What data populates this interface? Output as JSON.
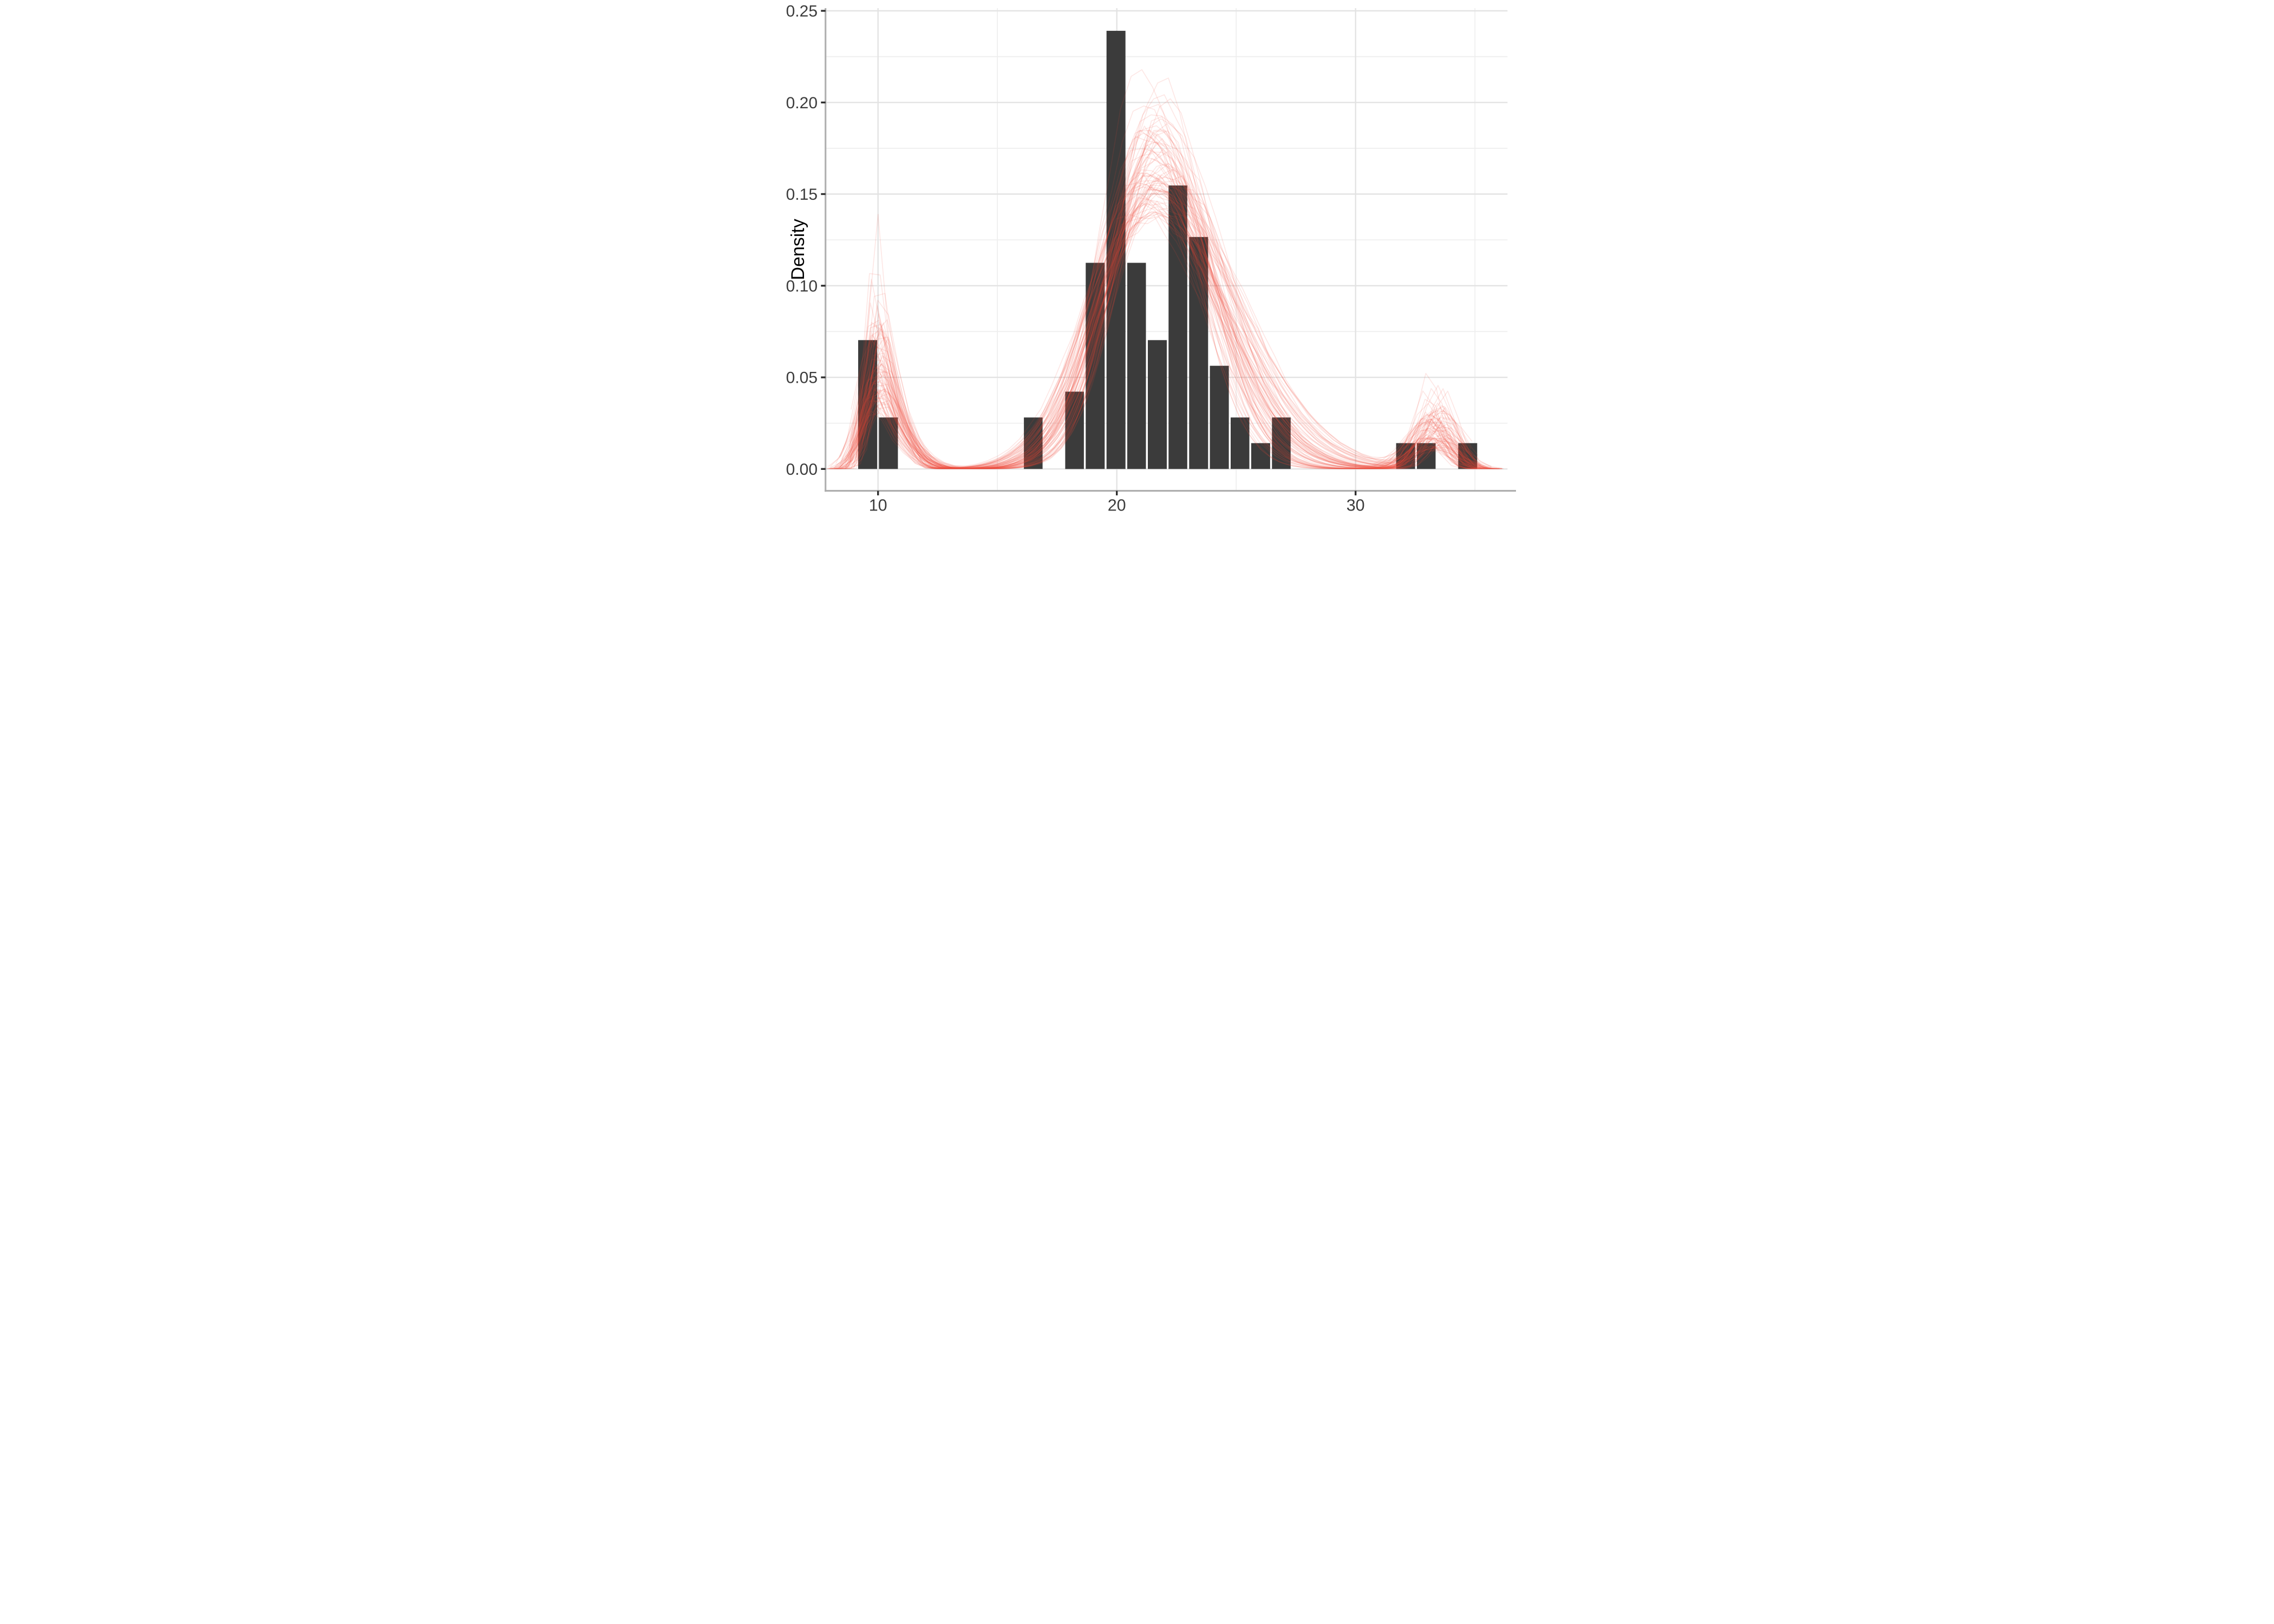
{
  "chart_data": {
    "type": "bar",
    "subtype": "histogram_with_kde_overlay_lines",
    "title": "",
    "xlabel": "",
    "ylabel": "Density",
    "legend": "none",
    "grid": "on",
    "xlim": [
      7.8,
      36.35
    ],
    "ylim": [
      -0.012,
      0.2511
    ],
    "x_major_ticks": [
      10,
      20,
      30
    ],
    "x_tick_labels": [
      "10",
      "20",
      "30"
    ],
    "x_minor_gridlines": [
      15,
      25,
      35
    ],
    "y_major_ticks": [
      0,
      0.05,
      0.1,
      0.15,
      0.2,
      0.25
    ],
    "y_tick_labels": [
      "0.00",
      "0.05",
      "0.10",
      "0.15",
      "0.20",
      "0.25"
    ],
    "y_minor_gridlines": [
      0.025,
      0.075,
      0.125,
      0.175,
      0.225
    ],
    "histogram": {
      "binwidth": 0.8664,
      "bins": [
        {
          "x0": 9.13,
          "x1": 10.0,
          "density": 0.0703
        },
        {
          "x0": 10.0,
          "x1": 10.87,
          "density": 0.0281
        },
        {
          "x0": 16.07,
          "x1": 16.93,
          "density": 0.0281
        },
        {
          "x0": 17.8,
          "x1": 18.66,
          "density": 0.0422
        },
        {
          "x0": 18.66,
          "x1": 19.53,
          "density": 0.1125
        },
        {
          "x0": 19.53,
          "x1": 20.4,
          "density": 0.2391
        },
        {
          "x0": 20.4,
          "x1": 21.26,
          "density": 0.1125
        },
        {
          "x0": 21.26,
          "x1": 22.13,
          "density": 0.0703
        },
        {
          "x0": 22.13,
          "x1": 22.99,
          "density": 0.1547
        },
        {
          "x0": 22.99,
          "x1": 23.86,
          "density": 0.1266
        },
        {
          "x0": 23.86,
          "x1": 24.73,
          "density": 0.0563
        },
        {
          "x0": 24.73,
          "x1": 25.59,
          "density": 0.0281
        },
        {
          "x0": 25.59,
          "x1": 26.46,
          "density": 0.0141
        },
        {
          "x0": 26.46,
          "x1": 27.32,
          "density": 0.0281
        },
        {
          "x0": 31.66,
          "x1": 32.53,
          "density": 0.0141
        },
        {
          "x0": 32.53,
          "x1": 33.39,
          "density": 0.0141
        },
        {
          "x0": 34.26,
          "x1": 35.13,
          "density": 0.0141
        }
      ]
    },
    "density_overlays": {
      "description": "Approximately 80 semi-transparent red kernel-density curves overlaid on the histogram (posterior-predictive style); each curve is trimodal with peaks near x=10 (height 0.02-0.13), x=21.5 (height 0.14-0.22) and x=33.3 (height 0.01-0.06), nearly zero in the troughs (x 12-16 and 28-31.5)",
      "count": 80,
      "seed": 11,
      "sample_step": 0.45,
      "jitter": 0.05,
      "left_peak": {
        "mu": [
          9.7,
          10.2
        ],
        "sigma": [
          0.33,
          0.75
        ],
        "weight": [
          0.05,
          0.16
        ],
        "echo_frac": 0.35,
        "echo_dx": 0.85,
        "echo_sigma_mult": 1.4
      },
      "main_peak": {
        "mu": [
          20.9,
          22.1
        ],
        "sigma": [
          1.7,
          2.45
        ],
        "right_tail_mult": [
          1.05,
          1.6
        ]
      },
      "right_peak": {
        "mu": [
          32.9,
          33.9
        ],
        "sigma": [
          0.5,
          1.05
        ],
        "weight": [
          0.022,
          0.072
        ]
      },
      "x_start": [
        7.85,
        9.2
      ],
      "x_end": [
        34.6,
        36.2
      ],
      "fixed_curves": [
        {
          "mu1": 9.95,
          "s1": 0.36,
          "w1": 0.08,
          "mu2": 20.95,
          "s2": 1.66,
          "rt": 1.25,
          "w3": 0.025,
          "mu3": 33.2,
          "s3": 0.8,
          "x0": 8.0,
          "x1": 35.3
        },
        {
          "mu1": 9.9,
          "s1": 0.33,
          "w1": 0.165,
          "mu2": 21.6,
          "s2": 2.1,
          "rt": 1.3,
          "w3": 0.028,
          "mu3": 33.0,
          "s3": 0.6,
          "x0": 8.2,
          "x1": 35.0
        }
      ]
    },
    "style": {
      "bar_fill": "#3b3b3b",
      "curve_stroke": "#f24836",
      "curve_opacity": 0.13,
      "curve_width": 1.65,
      "grid_major_color": "#e3e3e3",
      "grid_minor_color": "#eeeeee",
      "axis_line_color": "#b0b0b0",
      "tick_color": "#2f2f2f",
      "tick_label_color": "#3c3c3c",
      "axis_title_color": "#000000",
      "panel_background": "#ffffff"
    }
  }
}
